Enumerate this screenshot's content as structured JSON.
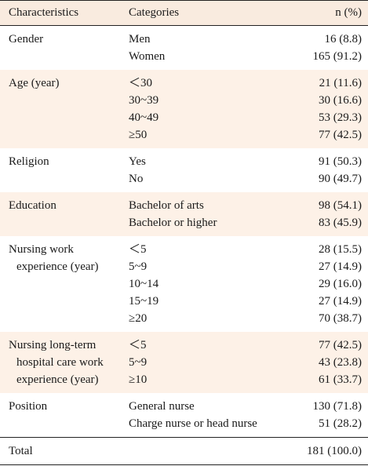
{
  "header": {
    "characteristics": "Characteristics",
    "categories": "Categories",
    "n": "n (%)"
  },
  "groups": [
    {
      "characteristic": [
        "Gender"
      ],
      "rows": [
        {
          "category": "Men",
          "n": "16 (8.8)"
        },
        {
          "category": "Women",
          "n": "165 (91.2)"
        }
      ]
    },
    {
      "characteristic": [
        "Age (year)"
      ],
      "rows": [
        {
          "category": "＜30",
          "n": "21 (11.6)"
        },
        {
          "category": "30~39",
          "n": "30 (16.6)"
        },
        {
          "category": "40~49",
          "n": "53 (29.3)"
        },
        {
          "category": "≥50",
          "n": "77 (42.5)"
        }
      ]
    },
    {
      "characteristic": [
        "Religion"
      ],
      "rows": [
        {
          "category": "Yes",
          "n": "91 (50.3)"
        },
        {
          "category": "No",
          "n": "90 (49.7)"
        }
      ]
    },
    {
      "characteristic": [
        "Education"
      ],
      "rows": [
        {
          "category": "Bachelor of arts",
          "n": "98 (54.1)"
        },
        {
          "category": "Bachelor or higher",
          "n": "83 (45.9)"
        }
      ]
    },
    {
      "characteristic": [
        "Nursing work",
        "experience (year)"
      ],
      "rows": [
        {
          "category": "＜5",
          "n": "28 (15.5)"
        },
        {
          "category": "5~9",
          "n": "27 (14.9)"
        },
        {
          "category": "10~14",
          "n": "29 (16.0)"
        },
        {
          "category": "15~19",
          "n": "27 (14.9)"
        },
        {
          "category": "≥20",
          "n": "70 (38.7)"
        }
      ]
    },
    {
      "characteristic": [
        "Nursing long-term",
        "hospital care work",
        "experience (year)"
      ],
      "rows": [
        {
          "category": "＜5",
          "n": "77 (42.5)"
        },
        {
          "category": "5~9",
          "n": "43 (23.8)"
        },
        {
          "category": "≥10",
          "n": "61 (33.7)"
        }
      ]
    },
    {
      "characteristic": [
        "Position"
      ],
      "rows": [
        {
          "category": "General nurse",
          "n": "130 (71.8)"
        },
        {
          "category": "Charge nurse or head nurse",
          "n": "51 (28.2)"
        }
      ]
    }
  ],
  "total": {
    "label": "Total",
    "category": "",
    "n": "181 (100.0)"
  }
}
